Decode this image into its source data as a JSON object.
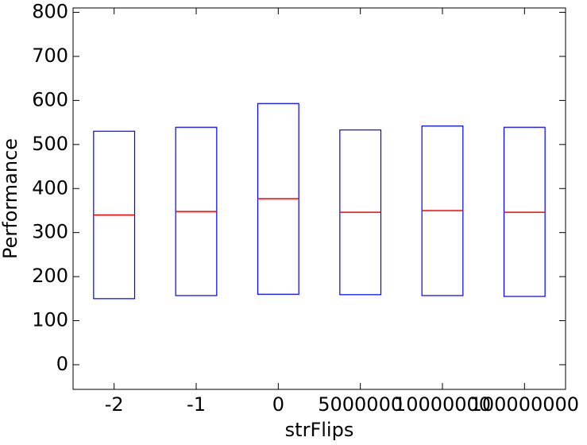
{
  "chart_data": {
    "type": "box",
    "xlabel": "strFlips",
    "ylabel": "Performance",
    "categories": [
      "-2",
      "-1",
      "0",
      "5000000",
      "10000000",
      "100000000"
    ],
    "q1": [
      150,
      157,
      160,
      159,
      157,
      155
    ],
    "median": [
      340,
      348,
      377,
      346,
      350,
      346
    ],
    "q3": [
      530,
      539,
      593,
      533,
      542,
      539
    ],
    "box_color": "#0000ff",
    "median_color": "#ff0000",
    "ylim": [
      -56,
      810
    ],
    "yticks": [
      0,
      100,
      200,
      300,
      400,
      500,
      600,
      700,
      800
    ]
  }
}
